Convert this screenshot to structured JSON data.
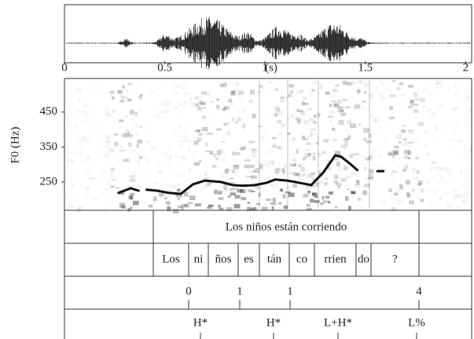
{
  "chart_data": {
    "type": "line",
    "xlabel": "(s)",
    "ylabel": "F0 (Hz)",
    "xlim": [
      0,
      2.03
    ],
    "xticks": [
      0,
      0.5,
      1,
      1.5,
      2
    ],
    "ylim": [
      169,
      546
    ],
    "yticks": [
      250,
      350,
      450
    ],
    "series": [
      {
        "name": "F0",
        "color": "#111111",
        "x": [
          0.27,
          0.33,
          0.37,
          null,
          0.41,
          0.46,
          0.52,
          0.58,
          0.64,
          0.7,
          0.78,
          0.84,
          0.89,
          0.95,
          1.01,
          1.05,
          1.11,
          1.15,
          1.23,
          1.29,
          1.35,
          1.38,
          1.42,
          1.46,
          null,
          1.51,
          null,
          1.56,
          1.59
        ],
        "values": [
          219,
          232,
          225,
          null,
          228,
          225,
          219,
          216,
          243,
          254,
          250,
          241,
          239,
          241,
          248,
          257,
          254,
          250,
          241,
          277,
          326,
          322,
          304,
          284,
          null,
          281,
          null,
          281,
          281
        ]
      }
    ]
  },
  "tiers": {
    "sentence": [
      "Los niños están corriendo"
    ],
    "syllables": [
      "Los",
      "ni",
      "ños",
      "es",
      "tán",
      "co",
      "rrien",
      "do",
      "?"
    ],
    "breaks": [
      "0",
      "1",
      "1",
      "4"
    ],
    "tones": [
      "H*",
      "H*",
      "L+H*",
      "L%"
    ]
  }
}
